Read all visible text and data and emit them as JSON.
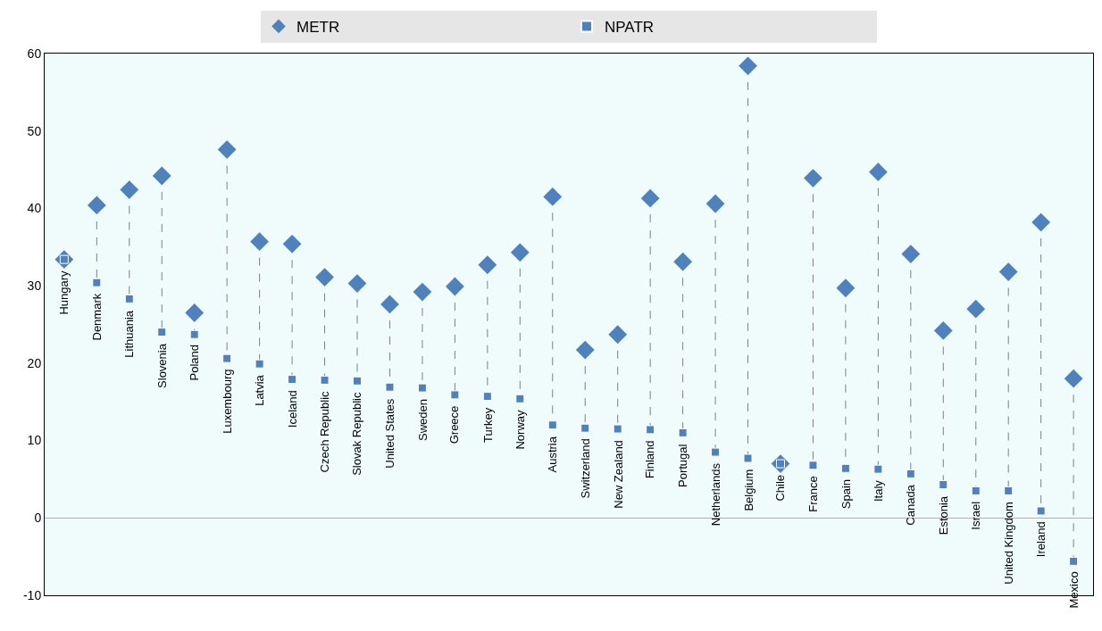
{
  "chart_data": {
    "type": "scatter",
    "categories": [
      "Hungary",
      "Denmark",
      "Lithuania",
      "Slovenia",
      "Poland",
      "Luxembourg",
      "Latvia",
      "Iceland",
      "Czech Republic",
      "Slovak Republic",
      "United States",
      "Sweden",
      "Greece",
      "Turkey",
      "Norway",
      "Austria",
      "Switzerland",
      "New Zealand",
      "Finland",
      "Portugal",
      "Netherlands",
      "Belgium",
      "Chile",
      "France",
      "Spain",
      "Italy",
      "Canada",
      "Estonia",
      "Israel",
      "United Kingdom",
      "Ireland",
      "Mexico"
    ],
    "series": [
      {
        "name": "METR",
        "color": "#4f81bd",
        "marker": "diamond",
        "values": [
          33.4,
          40.4,
          42.4,
          44.2,
          26.5,
          47.6,
          35.7,
          35.4,
          31.1,
          30.3,
          27.6,
          29.2,
          29.9,
          32.7,
          34.3,
          41.5,
          21.7,
          23.7,
          41.3,
          33.1,
          40.6,
          58.4,
          7.0,
          43.9,
          29.7,
          44.7,
          34.1,
          24.2,
          27.0,
          31.8,
          38.2,
          18.0
        ]
      },
      {
        "name": "NPATR",
        "color": "#4f81bd",
        "marker": "square",
        "values": [
          33.4,
          30.4,
          28.3,
          24.0,
          23.7,
          20.6,
          19.9,
          17.9,
          17.8,
          17.7,
          16.9,
          16.8,
          15.9,
          15.7,
          15.4,
          12.0,
          11.6,
          11.5,
          11.4,
          11.0,
          8.5,
          7.7,
          7.0,
          6.8,
          6.4,
          6.3,
          5.7,
          4.3,
          3.5,
          3.5,
          0.9,
          -5.6
        ]
      }
    ],
    "ylim": [
      -10,
      60
    ],
    "yticks": [
      -10,
      0,
      10,
      20,
      30,
      40,
      50,
      60
    ],
    "grid": false,
    "legend": "top"
  }
}
